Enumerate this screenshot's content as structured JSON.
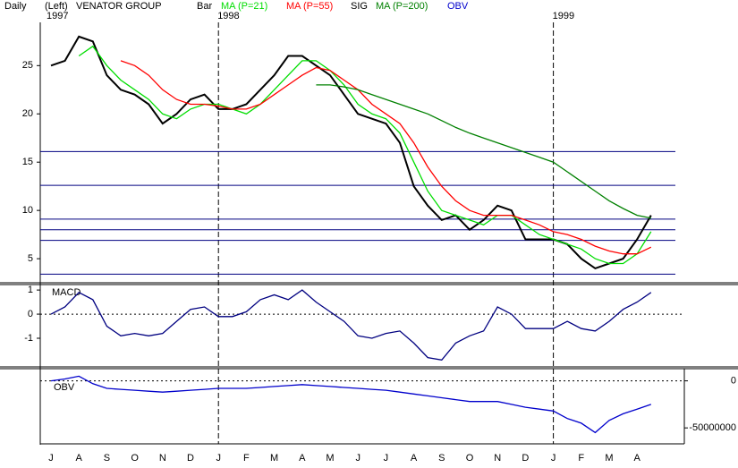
{
  "chart_data": [
    {
      "type": "line",
      "title": "VENATOR GROUP",
      "period": "Daily",
      "side": "(Left)",
      "categories": [
        "J",
        null,
        "A",
        null,
        "S",
        null,
        "O",
        null,
        "N",
        null,
        "D",
        null,
        "J",
        null,
        "F",
        null,
        "M",
        null,
        "A",
        null,
        "M",
        null,
        "J",
        null,
        "J",
        null,
        "A",
        null,
        "S",
        null,
        "O",
        null,
        "N",
        null,
        "D",
        null,
        "J",
        null,
        "F",
        null,
        "M",
        null,
        "A",
        null
      ],
      "years": [
        {
          "label": "1997",
          "category": 0
        },
        {
          "label": "1998",
          "category": 12
        },
        {
          "label": "1999",
          "category": 36
        }
      ],
      "ylim": [
        2.6,
        29.2
      ],
      "yticks": [
        5,
        10,
        15,
        20,
        25
      ],
      "hlines": [
        16.1,
        12.6,
        9.1,
        8.0,
        6.9,
        3.4
      ],
      "hline_color": "#000080",
      "series": [
        {
          "name": "Bar",
          "color": "#000000",
          "values": [
            25,
            25.5,
            28,
            27.5,
            24,
            22.5,
            22,
            21,
            19,
            20,
            21.5,
            22,
            20.5,
            20.5,
            21,
            22.5,
            24,
            26,
            26,
            25,
            24,
            22,
            20,
            19.5,
            19,
            17,
            12.5,
            10.5,
            9,
            9.5,
            8,
            9,
            10.5,
            10,
            7,
            7,
            7,
            6.5,
            5,
            4,
            4.5,
            5,
            7,
            9.5
          ]
        },
        {
          "name": "MA (P=21)",
          "color": "#00dd00",
          "values": [
            null,
            null,
            26,
            27,
            25,
            23.5,
            22.5,
            21.5,
            20,
            19.5,
            20.5,
            21,
            21,
            20.5,
            20,
            21,
            22.5,
            24,
            25.5,
            25.5,
            24.5,
            23,
            21,
            20,
            19.5,
            18,
            15,
            12,
            10,
            9.5,
            9,
            8.5,
            9.5,
            9.5,
            8.5,
            7.5,
            7,
            6.5,
            6,
            5,
            4.5,
            4.5,
            5.5,
            7.8
          ]
        },
        {
          "name": "MA (P=55)",
          "color": "#ff0000",
          "values": [
            null,
            null,
            null,
            null,
            null,
            25.5,
            25,
            24,
            22.5,
            21.5,
            21,
            21,
            20.8,
            20.5,
            20.5,
            21,
            22,
            23,
            24,
            24.8,
            24.5,
            23.5,
            22.5,
            21,
            20,
            19,
            17,
            14.5,
            12.5,
            11,
            10,
            9.5,
            9.5,
            9.5,
            9,
            8.5,
            7.8,
            7.5,
            7,
            6.3,
            5.8,
            5.5,
            5.5,
            6.2
          ]
        },
        {
          "name": "MA (P=200)",
          "color": "#008000",
          "values": [
            null,
            null,
            null,
            null,
            null,
            null,
            null,
            null,
            null,
            null,
            null,
            null,
            null,
            null,
            null,
            null,
            null,
            null,
            null,
            23,
            23,
            22.8,
            22.5,
            22,
            21.5,
            21,
            20.5,
            20,
            19.3,
            18.6,
            18,
            17.5,
            17,
            16.5,
            16,
            15.5,
            15,
            14,
            13,
            12,
            11,
            10.2,
            9.5,
            9.2
          ]
        }
      ]
    },
    {
      "type": "line",
      "title": "MACD",
      "signal_label": "SIG",
      "zero_line": true,
      "ylim": [
        -2.15,
        1.19
      ],
      "yticks": [
        1,
        0,
        -1
      ],
      "series": [
        {
          "color": "#000080",
          "values": [
            0,
            0.3,
            0.9,
            0.6,
            -0.5,
            -0.9,
            -0.8,
            -0.9,
            -0.8,
            -0.3,
            0.2,
            0.3,
            -0.1,
            -0.1,
            0.1,
            0.6,
            0.8,
            0.6,
            1.0,
            0.5,
            0.1,
            -0.3,
            -0.9,
            -1.0,
            -0.8,
            -0.7,
            -1.2,
            -1.8,
            -1.9,
            -1.2,
            -0.9,
            -0.7,
            0.3,
            0,
            -0.6,
            -0.6,
            -0.6,
            -0.3,
            -0.6,
            -0.7,
            -0.3,
            0.2,
            0.5,
            0.9
          ]
        }
      ]
    },
    {
      "type": "line",
      "title": "OBV",
      "ylim": [
        -66000000,
        12000000
      ],
      "yticks": [
        0,
        -50000000
      ],
      "series": [
        {
          "name": "OBV",
          "color": "#0000cc",
          "values": [
            0,
            2000000,
            5000000,
            -3000000,
            -8000000,
            -9000000,
            -10000000,
            -11000000,
            -12000000,
            -11000000,
            -10000000,
            -9000000,
            -8000000,
            -8000000,
            -8000000,
            -7000000,
            -6000000,
            -5000000,
            -4000000,
            -5000000,
            -6000000,
            -7000000,
            -8000000,
            -9000000,
            -10000000,
            -12000000,
            -14000000,
            -16000000,
            -18000000,
            -20000000,
            -22000000,
            -22000000,
            -22000000,
            -25000000,
            -28000000,
            -30000000,
            -32000000,
            -40000000,
            -45000000,
            -55000000,
            -42000000,
            -35000000,
            -30000000,
            -25000000
          ]
        }
      ]
    }
  ]
}
